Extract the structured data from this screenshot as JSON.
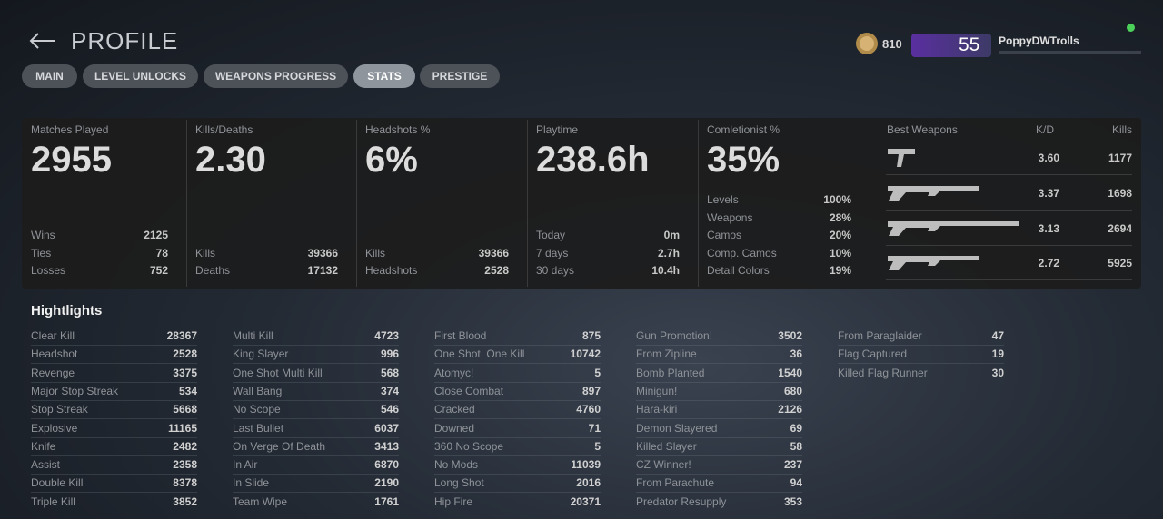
{
  "header": {
    "title": "PROFILE",
    "currency": "810",
    "level": "55",
    "username": "PoppyDWTrolls"
  },
  "tabs": [
    "MAIN",
    "LEVEL UNLOCKS",
    "WEAPONS PROGRESS",
    "STATS",
    "PRESTIGE"
  ],
  "active_tab": 3,
  "panels": [
    {
      "label": "Matches Played",
      "value": "2955",
      "rows": [
        [
          "Wins",
          "2125"
        ],
        [
          "Ties",
          "78"
        ],
        [
          "Losses",
          "752"
        ]
      ]
    },
    {
      "label": "Kills/Deaths",
      "value": "2.30",
      "rows": [
        [
          "Kills",
          "39366"
        ],
        [
          "Deaths",
          "17132"
        ]
      ]
    },
    {
      "label": "Headshots %",
      "value": "6%",
      "rows": [
        [
          "Kills",
          "39366"
        ],
        [
          "Headshots",
          "2528"
        ]
      ]
    },
    {
      "label": "Playtime",
      "value": "238.6h",
      "rows": [
        [
          "Today",
          "0m"
        ],
        [
          "7 days",
          "2.7h"
        ],
        [
          "30 days",
          "10.4h"
        ]
      ]
    },
    {
      "label": "Comletionist %",
      "value": "35%",
      "rows": [
        [
          "Levels",
          "100%"
        ],
        [
          "Weapons",
          "28%"
        ],
        [
          "Camos",
          "20%"
        ],
        [
          "Comp. Camos",
          "10%"
        ],
        [
          "Detail Colors",
          "19%"
        ]
      ]
    }
  ],
  "best_weapons": {
    "title": "Best Weapons",
    "columns": [
      "K/D",
      "Kills"
    ],
    "rows": [
      [
        "3.60",
        "1177"
      ],
      [
        "3.37",
        "1698"
      ],
      [
        "3.13",
        "2694"
      ],
      [
        "2.72",
        "5925"
      ]
    ]
  },
  "highlights": {
    "title": "Hightlights",
    "columns": [
      [
        [
          "Clear Kill",
          "28367"
        ],
        [
          "Headshot",
          "2528"
        ],
        [
          "Revenge",
          "3375"
        ],
        [
          "Major Stop Streak",
          "534"
        ],
        [
          "Stop Streak",
          "5668"
        ],
        [
          "Explosive",
          "11165"
        ],
        [
          "Knife",
          "2482"
        ],
        [
          "Assist",
          "2358"
        ],
        [
          "Double Kill",
          "8378"
        ],
        [
          "Triple Kill",
          "3852"
        ]
      ],
      [
        [
          "Multi Kill",
          "4723"
        ],
        [
          "King Slayer",
          "996"
        ],
        [
          "One Shot Multi Kill",
          "568"
        ],
        [
          "Wall Bang",
          "374"
        ],
        [
          "No Scope",
          "546"
        ],
        [
          "Last Bullet",
          "6037"
        ],
        [
          "On Verge Of Death",
          "3413"
        ],
        [
          "In Air",
          "6870"
        ],
        [
          "In Slide",
          "2190"
        ],
        [
          "Team Wipe",
          "1761"
        ]
      ],
      [
        [
          "First Blood",
          "875"
        ],
        [
          "One Shot, One Kill",
          "10742"
        ],
        [
          "Atomyc!",
          "5"
        ],
        [
          "Close Combat",
          "897"
        ],
        [
          "Cracked",
          "4760"
        ],
        [
          "Downed",
          "71"
        ],
        [
          "360 No Scope",
          "5"
        ],
        [
          "No Mods",
          "11039"
        ],
        [
          "Long Shot",
          "2016"
        ],
        [
          "Hip Fire",
          "20371"
        ]
      ],
      [
        [
          "Gun Promotion!",
          "3502"
        ],
        [
          "From Zipline",
          "36"
        ],
        [
          "Bomb Planted",
          "1540"
        ],
        [
          "Minigun!",
          "680"
        ],
        [
          "Hara-kiri",
          "2126"
        ],
        [
          "Demon Slayered",
          "69"
        ],
        [
          "Killed Slayer",
          "58"
        ],
        [
          "CZ Winner!",
          "237"
        ],
        [
          "From Parachute",
          "94"
        ],
        [
          "Predator Resupply",
          "353"
        ]
      ],
      [
        [
          "From Paraglaider",
          "47"
        ],
        [
          "Flag Captured",
          "19"
        ],
        [
          "Killed Flag Runner",
          "30"
        ]
      ]
    ]
  }
}
